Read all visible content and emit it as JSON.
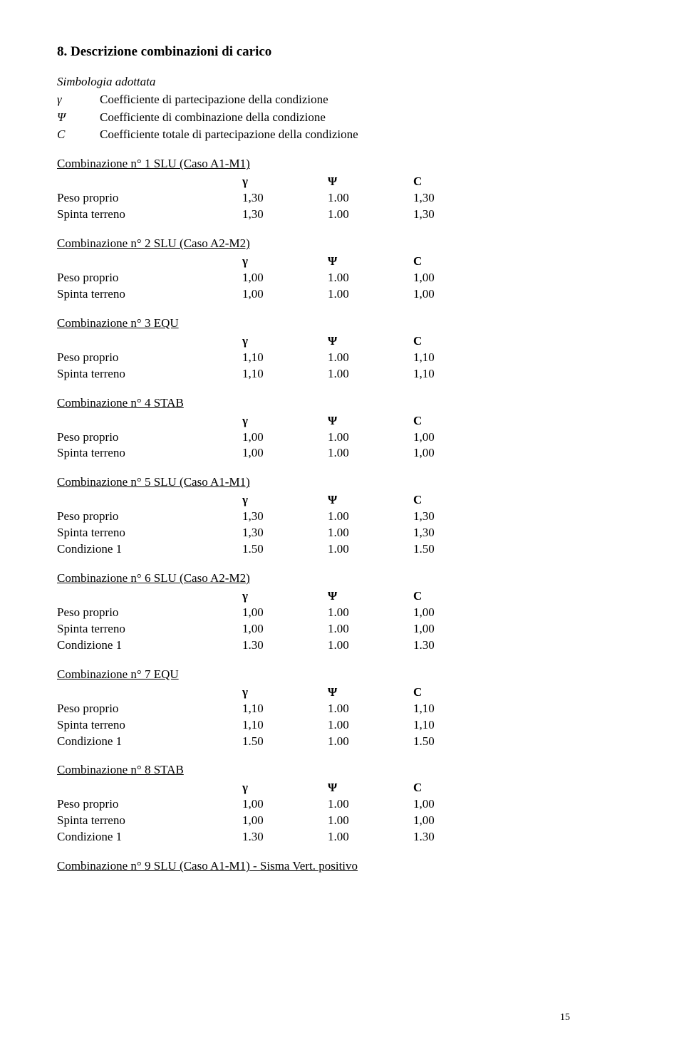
{
  "section_title": "8. Descrizione combinazioni di carico",
  "symbology": {
    "title": "Simbologia adottata",
    "items": [
      {
        "sym": "γ",
        "desc": "Coefficiente di partecipazione della condizione"
      },
      {
        "sym": "Ψ",
        "desc": "Coefficiente di combinazione della condizione"
      },
      {
        "sym": "C",
        "desc": "Coefficiente totale di partecipazione della condizione"
      }
    ]
  },
  "headers": {
    "g": "γ",
    "p": "Ψ",
    "c": "C"
  },
  "labels": {
    "peso": "Peso proprio",
    "spinta": "Spinta terreno",
    "cond1": "Condizione 1"
  },
  "combos": [
    {
      "title": "Combinazione n° 1 SLU (Caso A1-M1)",
      "rows": [
        {
          "label": "peso",
          "g": "1,30",
          "p": "1.00",
          "c": "1,30"
        },
        {
          "label": "spinta",
          "g": "1,30",
          "p": "1.00",
          "c": "1,30"
        }
      ]
    },
    {
      "title": "Combinazione n° 2 SLU (Caso A2-M2)",
      "rows": [
        {
          "label": "peso",
          "g": "1,00",
          "p": "1.00",
          "c": "1,00"
        },
        {
          "label": "spinta",
          "g": "1,00",
          "p": "1.00",
          "c": "1,00"
        }
      ]
    },
    {
      "title": "Combinazione n° 3 EQU",
      "rows": [
        {
          "label": "peso",
          "g": "1,10",
          "p": "1.00",
          "c": "1,10"
        },
        {
          "label": "spinta",
          "g": "1,10",
          "p": "1.00",
          "c": "1,10"
        }
      ]
    },
    {
      "title": "Combinazione n° 4 STAB",
      "rows": [
        {
          "label": "peso",
          "g": "1,00",
          "p": "1.00",
          "c": "1,00"
        },
        {
          "label": "spinta",
          "g": "1,00",
          "p": "1.00",
          "c": "1,00"
        }
      ]
    },
    {
      "title": "Combinazione n° 5 SLU (Caso A1-M1)",
      "rows": [
        {
          "label": "peso",
          "g": "1,30",
          "p": "1.00",
          "c": "1,30"
        },
        {
          "label": "spinta",
          "g": "1,30",
          "p": "1.00",
          "c": "1,30"
        },
        {
          "label": "cond1",
          "g": "1.50",
          "p": "1.00",
          "c": "1.50"
        }
      ]
    },
    {
      "title": "Combinazione n° 6 SLU (Caso A2-M2)",
      "rows": [
        {
          "label": "peso",
          "g": "1,00",
          "p": "1.00",
          "c": "1,00"
        },
        {
          "label": "spinta",
          "g": "1,00",
          "p": "1.00",
          "c": "1,00"
        },
        {
          "label": "cond1",
          "g": "1.30",
          "p": "1.00",
          "c": "1.30"
        }
      ]
    },
    {
      "title": "Combinazione n° 7 EQU",
      "rows": [
        {
          "label": "peso",
          "g": "1,10",
          "p": "1.00",
          "c": "1,10"
        },
        {
          "label": "spinta",
          "g": "1,10",
          "p": "1.00",
          "c": "1,10"
        },
        {
          "label": "cond1",
          "g": "1.50",
          "p": "1.00",
          "c": "1.50"
        }
      ]
    },
    {
      "title": "Combinazione n° 8 STAB",
      "rows": [
        {
          "label": "peso",
          "g": "1,00",
          "p": "1.00",
          "c": "1,00"
        },
        {
          "label": "spinta",
          "g": "1,00",
          "p": "1.00",
          "c": "1,00"
        },
        {
          "label": "cond1",
          "g": "1.30",
          "p": "1.00",
          "c": "1.30"
        }
      ]
    }
  ],
  "final_title": "Combinazione n° 9 SLU (Caso A1-M1) - Sisma Vert. positivo",
  "page_number": "15"
}
